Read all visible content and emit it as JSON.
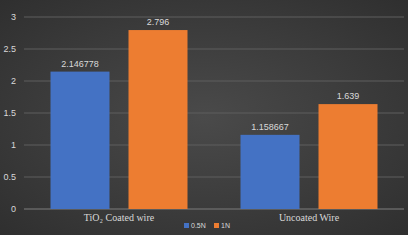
{
  "chart_data": {
    "type": "bar",
    "categories": [
      "TiO₂ Coated wire",
      "Uncoated Wire"
    ],
    "series": [
      {
        "name": "0.5N",
        "color": "#4472c4",
        "values": [
          2.146778,
          1.158667
        ]
      },
      {
        "name": "1N",
        "color": "#ed7d31",
        "values": [
          2.796,
          1.639
        ]
      }
    ],
    "ylim": [
      0,
      3
    ],
    "yticks": [
      0,
      0.5,
      1,
      1.5,
      2,
      2.5,
      3
    ],
    "grid": true,
    "data_labels": true,
    "legend": "bottom"
  }
}
